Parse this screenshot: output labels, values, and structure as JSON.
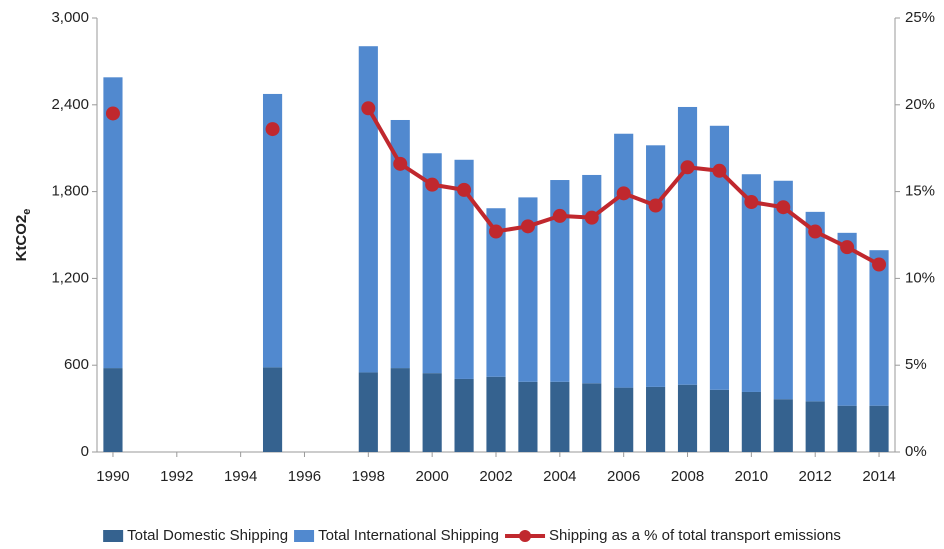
{
  "chart_data": {
    "type": "bar+line",
    "y_label": [
      "KtCO2",
      "e"
    ],
    "x": [
      1990,
      1991,
      1992,
      1993,
      1994,
      1995,
      1996,
      1997,
      1998,
      1999,
      2000,
      2001,
      2002,
      2003,
      2004,
      2005,
      2006,
      2007,
      2008,
      2009,
      2010,
      2011,
      2012,
      2013,
      2014
    ],
    "xlim": [
      1989.5,
      2014.5
    ],
    "xticks": [
      1990,
      1992,
      1994,
      1996,
      1998,
      2000,
      2002,
      2004,
      2006,
      2008,
      2010,
      2012,
      2014
    ],
    "ylim": [
      0,
      3000
    ],
    "yticks": [
      0,
      600,
      {
        "value": 1200,
        "label": "1,200"
      },
      {
        "value": 1800,
        "label": "1,800"
      },
      {
        "value": 2400,
        "label": "2,400"
      },
      {
        "value": 3000,
        "label": "3,000"
      }
    ],
    "y2lim": [
      0,
      25
    ],
    "y2ticks": [
      {
        "value": 0,
        "label": "0%"
      },
      {
        "value": 5,
        "label": "5%"
      },
      {
        "value": 10,
        "label": "10%"
      },
      {
        "value": 15,
        "label": "15%"
      },
      {
        "value": 20,
        "label": "20%"
      },
      {
        "value": 25,
        "label": "25%"
      }
    ],
    "grid": false,
    "legend": "bottom",
    "series": [
      {
        "name": "Total Domestic Shipping",
        "type": "bar",
        "stacked": true,
        "color": "#35628f",
        "values": [
          580,
          null,
          null,
          null,
          null,
          585,
          null,
          null,
          550,
          580,
          545,
          505,
          520,
          485,
          485,
          475,
          445,
          450,
          465,
          430,
          415,
          365,
          350,
          320,
          320
        ]
      },
      {
        "name": "Total International Shipping",
        "type": "bar",
        "stacked": true,
        "color": "#5189cf",
        "values": [
          2010,
          null,
          null,
          null,
          null,
          1890,
          null,
          null,
          2255,
          1715,
          1520,
          1515,
          1165,
          1275,
          1395,
          1440,
          1755,
          1670,
          1920,
          1825,
          1505,
          1510,
          1310,
          1195,
          1075
        ]
      },
      {
        "name": "Shipping as a % of total transport emissions",
        "type": "line",
        "axis": "y2",
        "color": "#c0282e",
        "values": [
          19.5,
          null,
          null,
          null,
          null,
          18.6,
          null,
          null,
          19.8,
          16.6,
          15.4,
          15.1,
          12.7,
          13.0,
          13.6,
          13.5,
          14.9,
          14.2,
          16.4,
          16.2,
          14.4,
          14.1,
          12.7,
          11.8,
          10.8
        ]
      }
    ]
  }
}
